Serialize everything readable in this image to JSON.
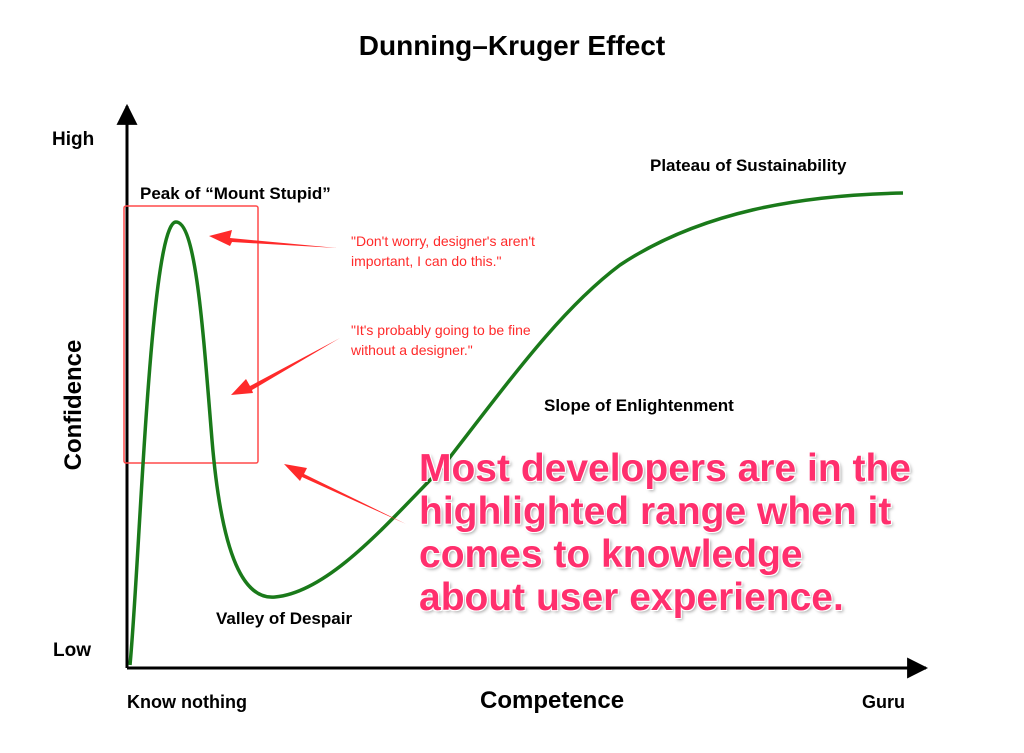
{
  "title": "Dunning–Kruger Effect",
  "axes": {
    "y_label": "Confidence",
    "x_label": "Competence",
    "y_high": "High",
    "y_low": "Low",
    "x_start": "Know nothing",
    "x_end": "Guru"
  },
  "phases": {
    "peak": "Peak of “Mount Stupid”",
    "valley": "Valley of Despair",
    "slope": "Slope of Enlightenment",
    "plateau": "Plateau of Sustainability"
  },
  "quotes": {
    "first": "\"Don't worry, designer's aren't important, I can do this.\"",
    "second": "\"It's probably going to be fine without a designer.\""
  },
  "callout": "Most developers are in the highlighted range when it comes to knowledge about user experience.",
  "colors": {
    "curve": "#1a7a1a",
    "highlight": "#ff4a4a",
    "quote": "#ff2a2a",
    "callout": "#ff2f6d"
  },
  "icons": [
    "arrow-icon"
  ]
}
